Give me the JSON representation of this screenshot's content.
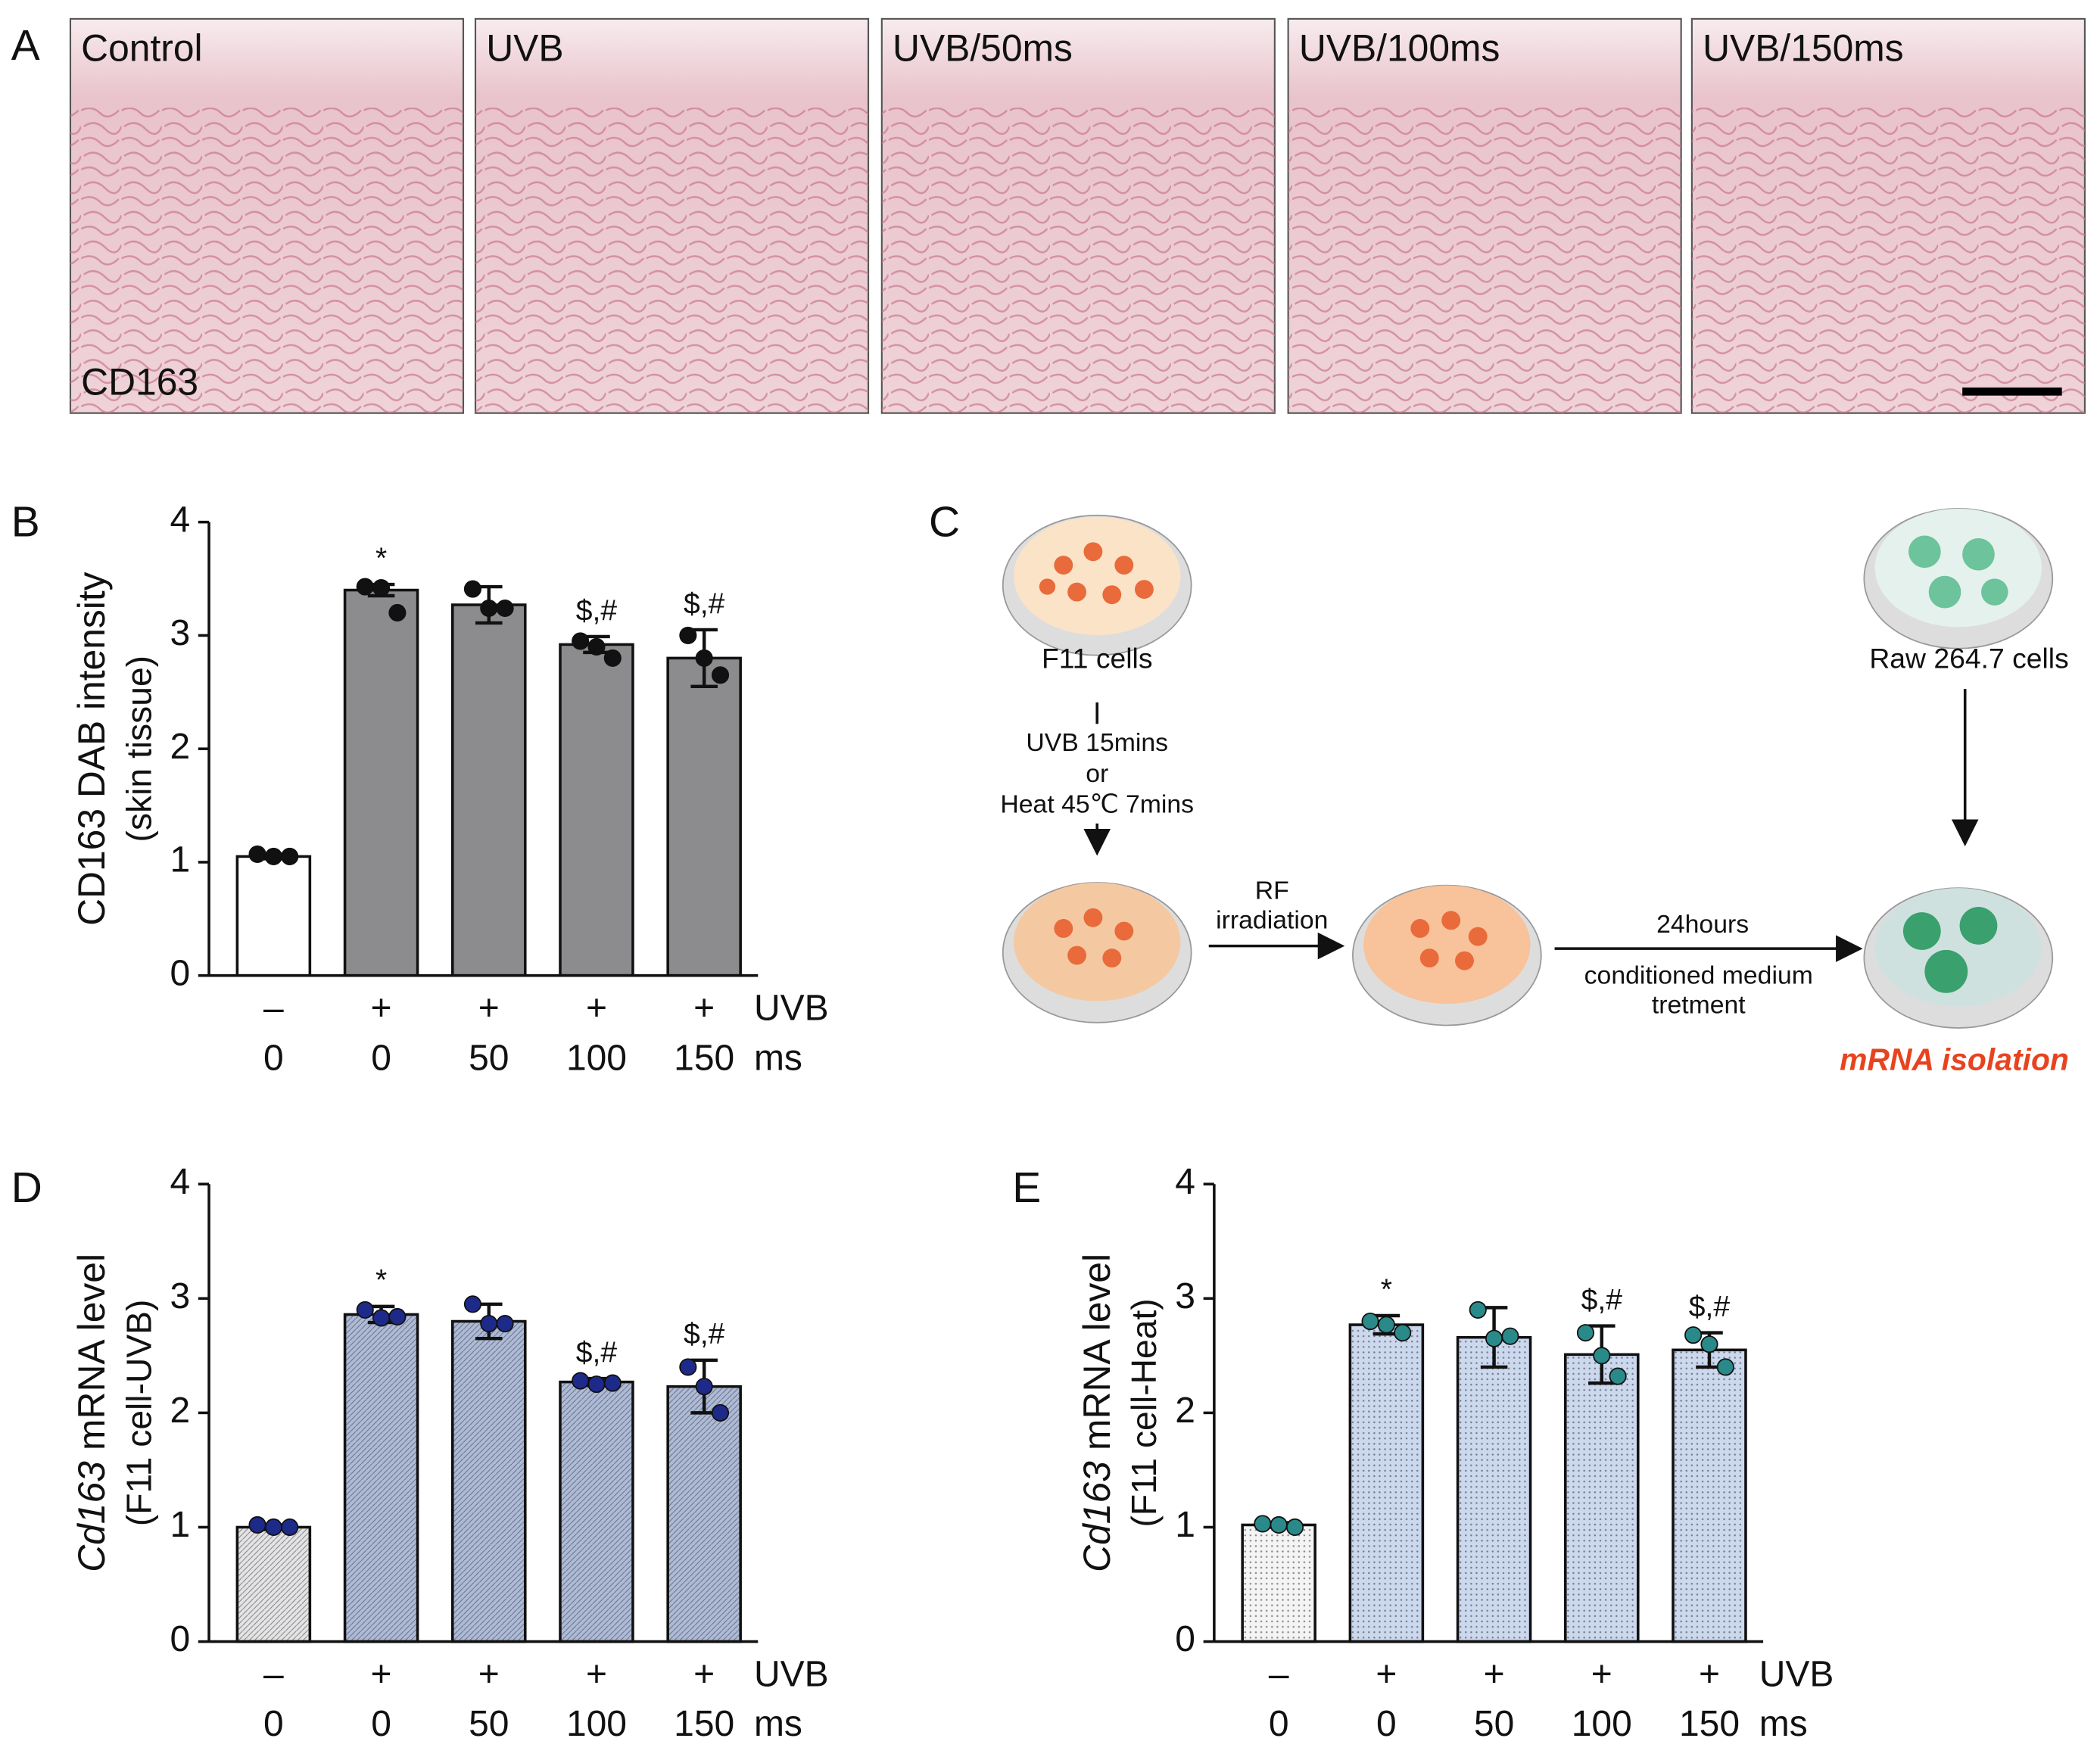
{
  "panel_labels": [
    "A",
    "B",
    "C",
    "D",
    "E"
  ],
  "panel_a": {
    "tiles": [
      "Control",
      "UVB",
      "UVB/50ms",
      "UVB/100ms",
      "UVB/150ms"
    ],
    "stain": "CD163"
  },
  "panel_c": {
    "source_cells": "F11 cells",
    "treatment": [
      "UVB 15mins",
      "or",
      "Heat 45℃ 7mins"
    ],
    "rf": [
      "RF",
      "irradiation"
    ],
    "time": "24hours",
    "medium": [
      "conditioned medium",
      "tretment"
    ],
    "target_cells": "Raw 264.7 cells",
    "result": "mRNA isolation"
  },
  "chart_data": [
    {
      "type": "bar",
      "ylabel": "CD163 DAB intensity",
      "ylabel2": "(skin tissue)",
      "uvb": [
        "–",
        "+",
        "+",
        "+",
        "+"
      ],
      "uvb_label": "UVB",
      "ms": [
        "0",
        "0",
        "50",
        "100",
        "150"
      ],
      "ms_label": "ms",
      "values": [
        1.05,
        3.4,
        3.27,
        2.92,
        2.8
      ],
      "errors": [
        0.02,
        0.05,
        0.16,
        0.07,
        0.25
      ],
      "points": [
        [
          1.07,
          1.05,
          1.05
        ],
        [
          3.43,
          3.42,
          3.2
        ],
        [
          3.41,
          3.24,
          3.24
        ],
        [
          2.95,
          2.9,
          2.8
        ],
        [
          3.0,
          2.8,
          2.65
        ]
      ],
      "annotations": [
        null,
        "*",
        null,
        "$,#",
        "$,#"
      ],
      "control_color": "#ffffff",
      "color": "#8c8c8f",
      "point_color": "#111111",
      "ylim": [
        0,
        4
      ],
      "yticks": [
        0,
        1,
        2,
        3,
        4
      ]
    },
    {
      "type": "bar",
      "ylabel_italic": "Cd163",
      "ylabel": "mRNA level",
      "ylabel2": "(F11 cell-UVB)",
      "uvb": [
        "–",
        "+",
        "+",
        "+",
        "+"
      ],
      "uvb_label": "UVB",
      "ms": [
        "0",
        "0",
        "50",
        "100",
        "150"
      ],
      "ms_label": "ms",
      "values": [
        1.0,
        2.86,
        2.8,
        2.27,
        2.23
      ],
      "errors": [
        0.02,
        0.07,
        0.15,
        0.03,
        0.23
      ],
      "points": [
        [
          1.02,
          1.0,
          1.0
        ],
        [
          2.9,
          2.83,
          2.84
        ],
        [
          2.95,
          2.78,
          2.78
        ],
        [
          2.28,
          2.25,
          2.26
        ],
        [
          2.4,
          2.23,
          2.0
        ]
      ],
      "annotations": [
        null,
        "*",
        null,
        "$,#",
        "$,#"
      ],
      "control_color": "#e4e4e4",
      "color": "#aebbd6",
      "point_color": "#1e2a8a",
      "ylim": [
        0,
        4
      ],
      "yticks": [
        0,
        1,
        2,
        3,
        4
      ]
    },
    {
      "type": "bar",
      "ylabel_italic": "Cd163",
      "ylabel": "mRNA level",
      "ylabel2": "(F11 cell-Heat)",
      "uvb": [
        "–",
        "+",
        "+",
        "+",
        "+"
      ],
      "uvb_label": "UVB",
      "ms": [
        "0",
        "0",
        "50",
        "100",
        "150"
      ],
      "ms_label": "ms",
      "values": [
        1.02,
        2.77,
        2.66,
        2.51,
        2.55
      ],
      "errors": [
        0.02,
        0.08,
        0.26,
        0.25,
        0.15
      ],
      "points": [
        [
          1.03,
          1.02,
          1.0
        ],
        [
          2.8,
          2.77,
          2.7
        ],
        [
          2.9,
          2.65,
          2.67
        ],
        [
          2.7,
          2.5,
          2.32
        ],
        [
          2.68,
          2.6,
          2.4
        ]
      ],
      "annotations": [
        null,
        "*",
        null,
        "$,#",
        "$,#"
      ],
      "control_color": "#f4f4f4",
      "color": "#cbd8ee",
      "point_color": "#2a8a8a",
      "ylim": [
        0,
        4
      ],
      "yticks": [
        0,
        1,
        2,
        3,
        4
      ]
    }
  ]
}
